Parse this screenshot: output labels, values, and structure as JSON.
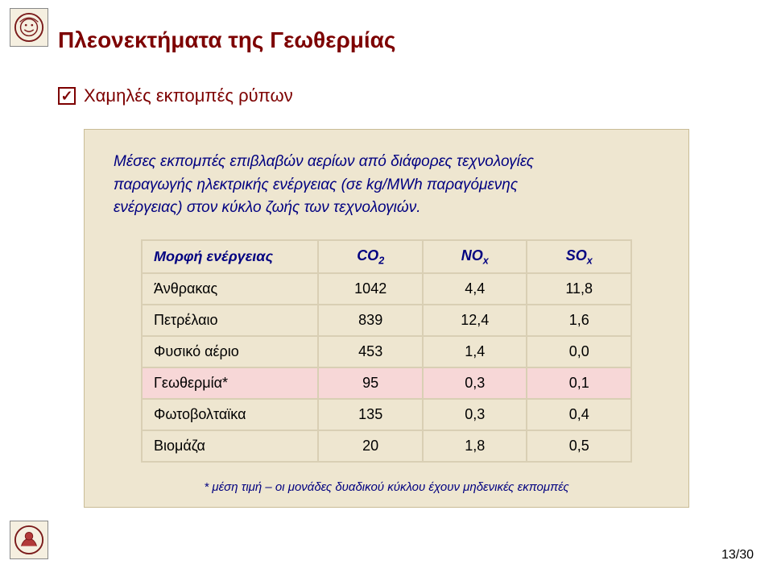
{
  "title": "Πλεονεκτήματα της Γεωθερμίας",
  "bullet": "Χαμηλές εκπομπές ρύπων",
  "desc_line1": "Μέσες εκπομπές επιβλαβών αερίων από διάφορες τεχνολογίες",
  "desc_line2": "παραγωγής ηλεκτρικής ενέργειας (σε kg/MWh παραγόμενης",
  "desc_line3": "ενέργειας) στον κύκλο ζωής των τεχνολογιών.",
  "table": {
    "header": {
      "name": "Μορφή ενέργειας",
      "co2_a": "CO",
      "co2_b": "2",
      "nox_a": "NO",
      "nox_b": "x",
      "sox_a": "SO",
      "sox_b": "x"
    },
    "rows": [
      {
        "name": "Άνθρακας",
        "co2": "1042",
        "nox": "4,4",
        "sox": "11,8",
        "hl": false
      },
      {
        "name": "Πετρέλαιο",
        "co2": "839",
        "nox": "12,4",
        "sox": "1,6",
        "hl": false
      },
      {
        "name": "Φυσικό αέριο",
        "co2": "453",
        "nox": "1,4",
        "sox": "0,0",
        "hl": false
      },
      {
        "name": "Γεωθερμία*",
        "co2": "95",
        "nox": "0,3",
        "sox": "0,1",
        "hl": true
      },
      {
        "name": "Φωτοβολταϊκα",
        "co2": "135",
        "nox": "0,3",
        "sox": "0,4",
        "hl": false
      },
      {
        "name": "Βιομάζα",
        "co2": "20",
        "nox": "1,8",
        "sox": "0,5",
        "hl": false
      }
    ]
  },
  "footnote": "* μέση τιμή – οι μονάδες δυαδικού κύκλου έχουν μηδενικές εκπομπές",
  "pagenum": "13/30"
}
